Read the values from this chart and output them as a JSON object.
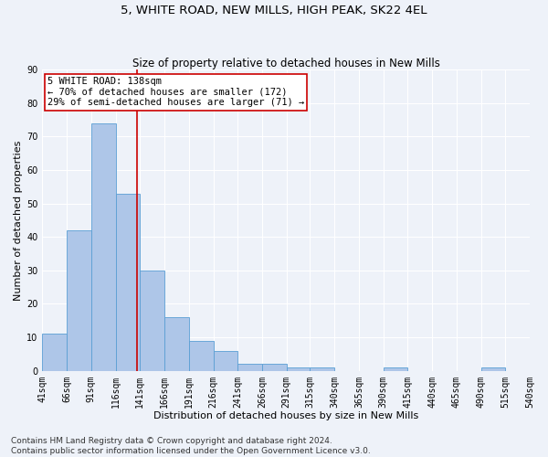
{
  "title": "5, WHITE ROAD, NEW MILLS, HIGH PEAK, SK22 4EL",
  "subtitle": "Size of property relative to detached houses in New Mills",
  "xlabel": "Distribution of detached houses by size in New Mills",
  "ylabel": "Number of detached properties",
  "bar_values": [
    11,
    42,
    74,
    53,
    30,
    16,
    9,
    6,
    2,
    2,
    1,
    1,
    0,
    0,
    1,
    0,
    0,
    0,
    1,
    0
  ],
  "bin_labels": [
    "41sqm",
    "66sqm",
    "91sqm",
    "116sqm",
    "141sqm",
    "166sqm",
    "191sqm",
    "216sqm",
    "241sqm",
    "266sqm",
    "291sqm",
    "315sqm",
    "340sqm",
    "365sqm",
    "390sqm",
    "415sqm",
    "440sqm",
    "465sqm",
    "490sqm",
    "515sqm",
    "540sqm"
  ],
  "bin_edges": [
    41,
    66,
    91,
    116,
    141,
    166,
    191,
    216,
    241,
    266,
    291,
    315,
    340,
    365,
    390,
    415,
    440,
    465,
    490,
    515,
    540
  ],
  "bar_color": "#aec6e8",
  "bar_edge_color": "#5a9fd4",
  "property_size": 138,
  "vline_color": "#cc0000",
  "annotation_text": "5 WHITE ROAD: 138sqm\n← 70% of detached houses are smaller (172)\n29% of semi-detached houses are larger (71) →",
  "annotation_box_color": "#ffffff",
  "annotation_box_edge": "#cc0000",
  "ylim": [
    0,
    90
  ],
  "yticks": [
    0,
    10,
    20,
    30,
    40,
    50,
    60,
    70,
    80,
    90
  ],
  "footer_line1": "Contains HM Land Registry data © Crown copyright and database right 2024.",
  "footer_line2": "Contains public sector information licensed under the Open Government Licence v3.0.",
  "bg_color": "#eef2f9",
  "grid_color": "#ffffff",
  "title_fontsize": 9.5,
  "subtitle_fontsize": 8.5,
  "axis_label_fontsize": 8,
  "tick_fontsize": 7,
  "annotation_fontsize": 7.5,
  "footer_fontsize": 6.5
}
